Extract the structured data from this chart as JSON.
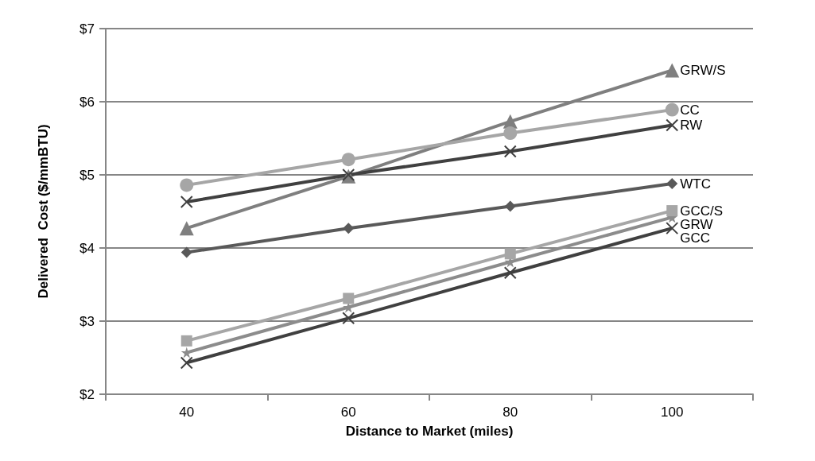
{
  "chart_data": {
    "type": "line",
    "xlabel": "Distance to Market (miles)",
    "ylabel": "Delivered  Cost ($/mmBTU)",
    "categories": [
      "40",
      "60",
      "80",
      "100"
    ],
    "ylim": [
      2,
      7
    ],
    "yticks": [
      {
        "value": 2,
        "label": "$2"
      },
      {
        "value": 3,
        "label": "$3"
      },
      {
        "value": 4,
        "label": "$4"
      },
      {
        "value": 5,
        "label": "$5"
      },
      {
        "value": 6,
        "label": "$6"
      },
      {
        "value": 7,
        "label": "$7"
      }
    ],
    "grid": "y",
    "legend": "right",
    "series": [
      {
        "name": "GRW/S",
        "color": "#7f7f7f",
        "marker": "triangle",
        "values": [
          4.27,
          4.98,
          5.73,
          6.43
        ]
      },
      {
        "name": "CC",
        "color": "#a6a6a6",
        "marker": "circle",
        "values": [
          4.86,
          5.21,
          5.57,
          5.89
        ]
      },
      {
        "name": "RW",
        "color": "#404040",
        "marker": "cross",
        "values": [
          4.63,
          5.0,
          5.32,
          5.68
        ]
      },
      {
        "name": "WTC",
        "color": "#595959",
        "marker": "diamond",
        "values": [
          3.94,
          4.27,
          4.57,
          4.88
        ]
      },
      {
        "name": "GRW",
        "color": "#8c8c8c",
        "marker": "star",
        "values": [
          2.57,
          3.19,
          3.81,
          4.42
        ]
      },
      {
        "name": "GCC/S",
        "color": "#a6a6a6",
        "marker": "square",
        "values": [
          2.73,
          3.31,
          3.92,
          4.51
        ]
      },
      {
        "name": "GCC",
        "color": "#404040",
        "marker": "cross",
        "values": [
          2.43,
          3.04,
          3.66,
          4.27
        ]
      }
    ]
  }
}
